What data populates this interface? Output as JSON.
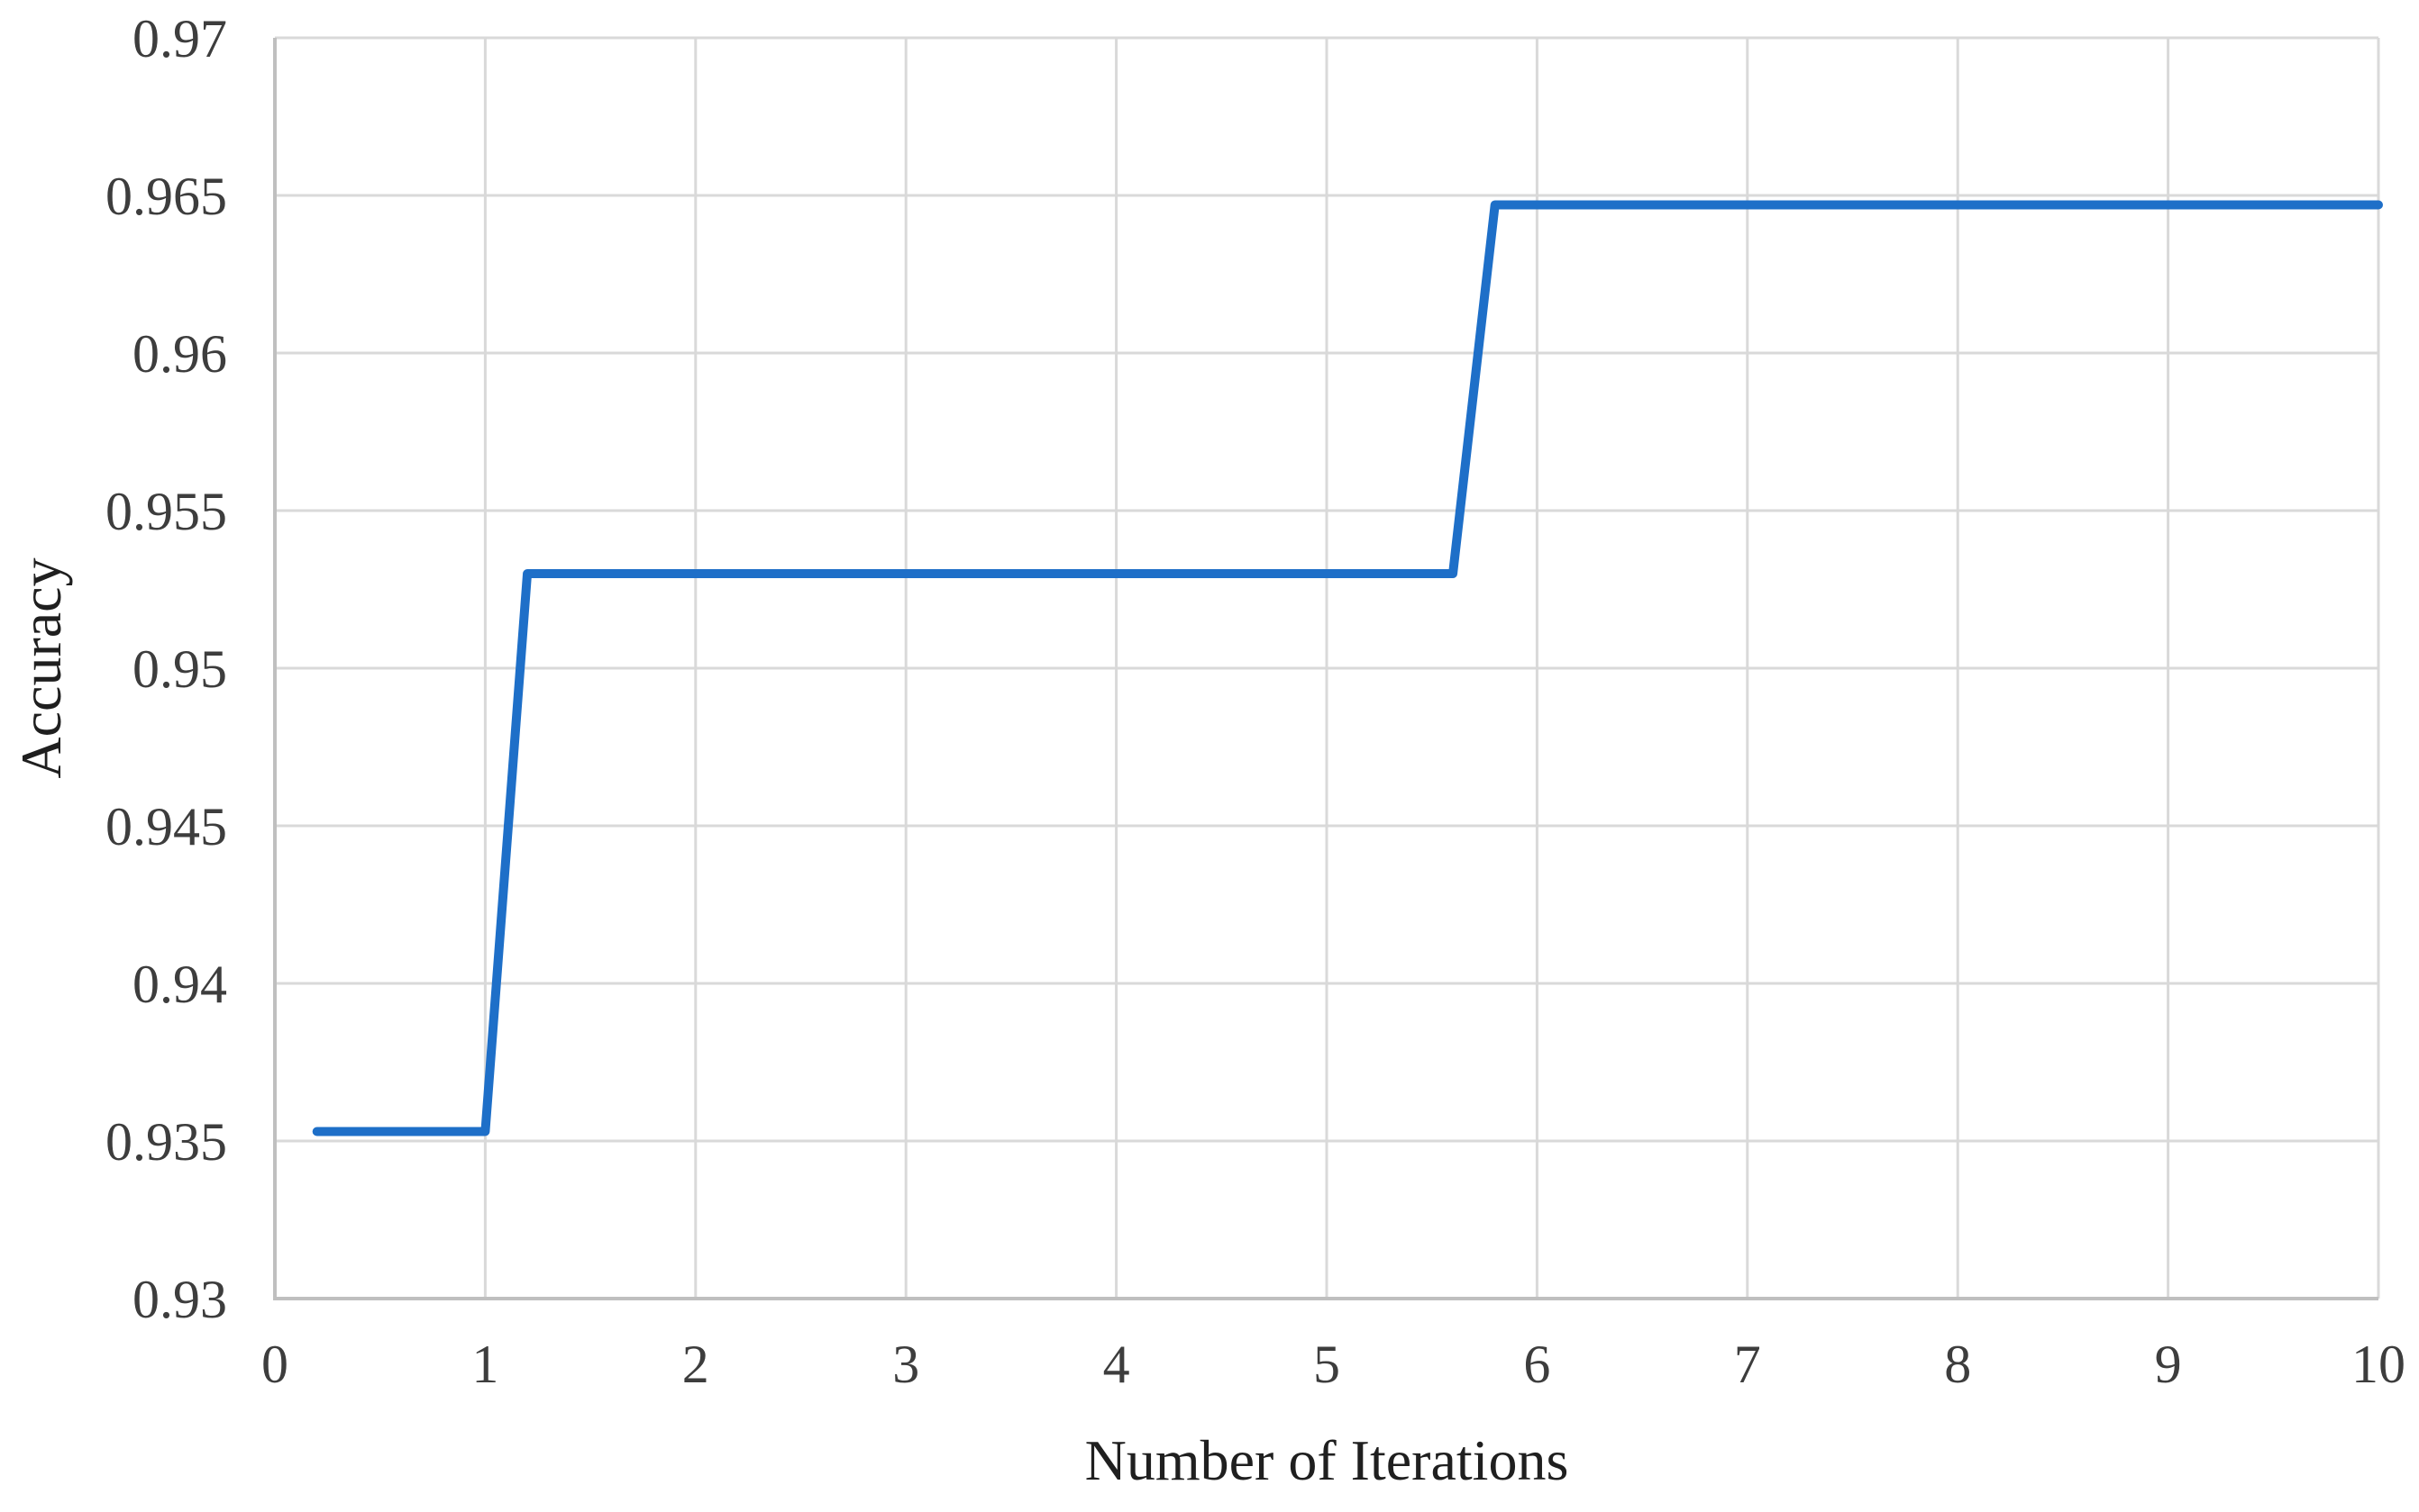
{
  "figure": {
    "background": "#ffffff"
  },
  "chart_data": {
    "type": "line",
    "title": "",
    "xlabel": "Number of Iterations",
    "ylabel": "Accuracy",
    "xlim": [
      0,
      10
    ],
    "ylim": [
      0.93,
      0.97
    ],
    "x_ticks": [
      0,
      1,
      2,
      3,
      4,
      5,
      6,
      7,
      8,
      9,
      10
    ],
    "x_tick_labels": [
      "0",
      "1",
      "2",
      "3",
      "4",
      "5",
      "6",
      "7",
      "8",
      "9",
      "10"
    ],
    "y_ticks": [
      0.93,
      0.935,
      0.94,
      0.945,
      0.95,
      0.955,
      0.96,
      0.965,
      0.97
    ],
    "y_tick_labels": [
      "0.93",
      "0.935",
      "0.94",
      "0.945",
      "0.95",
      "0.955",
      "0.96",
      "0.965",
      "0.97"
    ],
    "grid": true,
    "legend": "none",
    "series": [
      {
        "name": "Accuracy",
        "points": [
          [
            0.2,
            0.9353
          ],
          [
            1.0,
            0.9353
          ],
          [
            1.2,
            0.953
          ],
          [
            5.6,
            0.953
          ],
          [
            5.8,
            0.9647
          ],
          [
            10.0,
            0.9647
          ]
        ],
        "color": "#1e6fc8",
        "stroke_width": 10
      }
    ],
    "colors": {
      "gridline": "#d9d9d9",
      "axis_line": "#bfbfbf",
      "tick_text": "#3d3d3d",
      "title_text": "#1f1f1f"
    }
  }
}
